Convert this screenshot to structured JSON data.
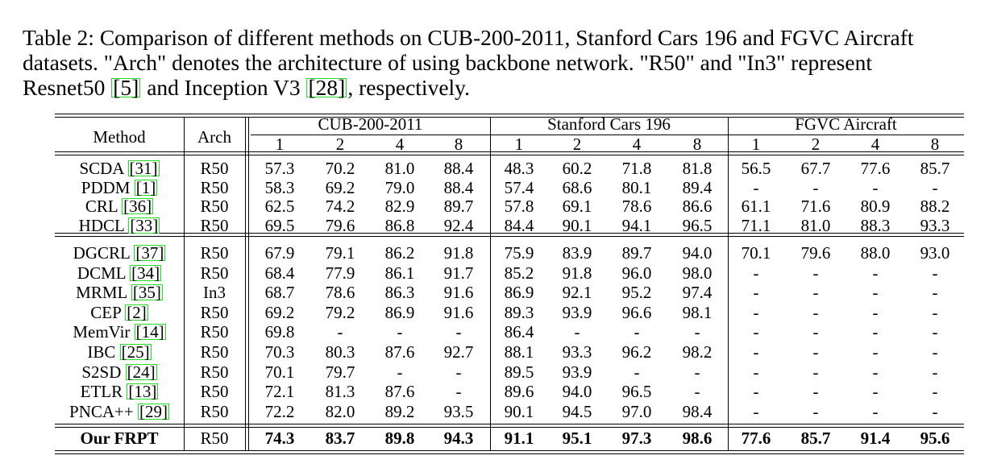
{
  "caption": {
    "line1": "Table 2:  Comparison of different methods on CUB-200-2011, Stanford Cars 196 and FGVC Aircraft",
    "line2": "datasets.  \"Arch\" denotes the architecture of using backbone network.  \"R50\" and \"In3\" represent",
    "line3_a": "Resnet50 ",
    "line3_ref1": "[5]",
    "line3_b": " and Inception V3 ",
    "line3_ref2": "[28]",
    "line3_c": ", respectively."
  },
  "table": {
    "col_method": "Method",
    "col_arch": "Arch",
    "groups": [
      "CUB-200-2011",
      "Stanford Cars 196",
      "FGVC Aircraft"
    ],
    "k_labels": [
      "1",
      "2",
      "4",
      "8"
    ],
    "block1": [
      {
        "name": "SCDA",
        "ref": "[31]",
        "arch": "R50",
        "vals": [
          "57.3",
          "70.2",
          "81.0",
          "88.4",
          "48.3",
          "60.2",
          "71.8",
          "81.8",
          "56.5",
          "67.7",
          "77.6",
          "85.7"
        ]
      },
      {
        "name": "PDDM",
        "ref": "[1]",
        "arch": "R50",
        "vals": [
          "58.3",
          "69.2",
          "79.0",
          "88.4",
          "57.4",
          "68.6",
          "80.1",
          "89.4",
          "-",
          "-",
          "-",
          "-"
        ]
      },
      {
        "name": "CRL",
        "ref": "[36]",
        "arch": "R50",
        "vals": [
          "62.5",
          "74.2",
          "82.9",
          "89.7",
          "57.8",
          "69.1",
          "78.6",
          "86.6",
          "61.1",
          "71.6",
          "80.9",
          "88.2"
        ]
      },
      {
        "name": "HDCL",
        "ref": "[33]",
        "arch": "R50",
        "vals": [
          "69.5",
          "79.6",
          "86.8",
          "92.4",
          "84.4",
          "90.1",
          "94.1",
          "96.5",
          "71.1",
          "81.0",
          "88.3",
          "93.3"
        ]
      }
    ],
    "block2": [
      {
        "name": "DGCRL",
        "ref": "[37]",
        "arch": "R50",
        "vals": [
          "67.9",
          "79.1",
          "86.2",
          "91.8",
          "75.9",
          "83.9",
          "89.7",
          "94.0",
          "70.1",
          "79.6",
          "88.0",
          "93.0"
        ]
      },
      {
        "name": "DCML",
        "ref": "[34]",
        "arch": "R50",
        "vals": [
          "68.4",
          "77.9",
          "86.1",
          "91.7",
          "85.2",
          "91.8",
          "96.0",
          "98.0",
          "-",
          "-",
          "-",
          "-"
        ]
      },
      {
        "name": "MRML",
        "ref": "[35]",
        "arch": "In3",
        "vals": [
          "68.7",
          "78.6",
          "86.3",
          "91.6",
          "86.9",
          "92.1",
          "95.2",
          "97.4",
          "-",
          "-",
          "-",
          "-"
        ]
      },
      {
        "name": "CEP",
        "ref": "[2]",
        "arch": "R50",
        "vals": [
          "69.2",
          "79.2",
          "86.9",
          "91.6",
          "89.3",
          "93.9",
          "96.6",
          "98.1",
          "-",
          "-",
          "-",
          "-"
        ]
      },
      {
        "name": "MemVir",
        "ref": "[14]",
        "arch": "R50",
        "vals": [
          "69.8",
          "-",
          "-",
          "-",
          "86.4",
          "-",
          "-",
          "-",
          "-",
          "-",
          "-",
          "-"
        ]
      },
      {
        "name": "IBC",
        "ref": "[25]",
        "arch": "R50",
        "vals": [
          "70.3",
          "80.3",
          "87.6",
          "92.7",
          "88.1",
          "93.3",
          "96.2",
          "98.2",
          "-",
          "-",
          "-",
          "-"
        ]
      },
      {
        "name": "S2SD",
        "ref": "[24]",
        "arch": "R50",
        "vals": [
          "70.1",
          "79.7",
          "-",
          "-",
          "89.5",
          "93.9",
          "-",
          "-",
          "-",
          "-",
          "-",
          "-"
        ]
      },
      {
        "name": "ETLR",
        "ref": "[13]",
        "arch": "R50",
        "vals": [
          "72.1",
          "81.3",
          "87.6",
          "-",
          "89.6",
          "94.0",
          "96.5",
          "-",
          "-",
          "-",
          "-",
          "-"
        ]
      },
      {
        "name": "PNCA++",
        "ref": "[29]",
        "arch": "R50",
        "vals": [
          "72.2",
          "82.0",
          "89.2",
          "93.5",
          "90.1",
          "94.5",
          "97.0",
          "98.4",
          "-",
          "-",
          "-",
          "-"
        ]
      }
    ],
    "ours": {
      "name": "Our FRPT",
      "arch": "R50",
      "vals": [
        "74.3",
        "83.7",
        "89.8",
        "94.3",
        "91.1",
        "95.1",
        "97.3",
        "98.6",
        "77.6",
        "85.7",
        "91.4",
        "95.6"
      ]
    }
  }
}
